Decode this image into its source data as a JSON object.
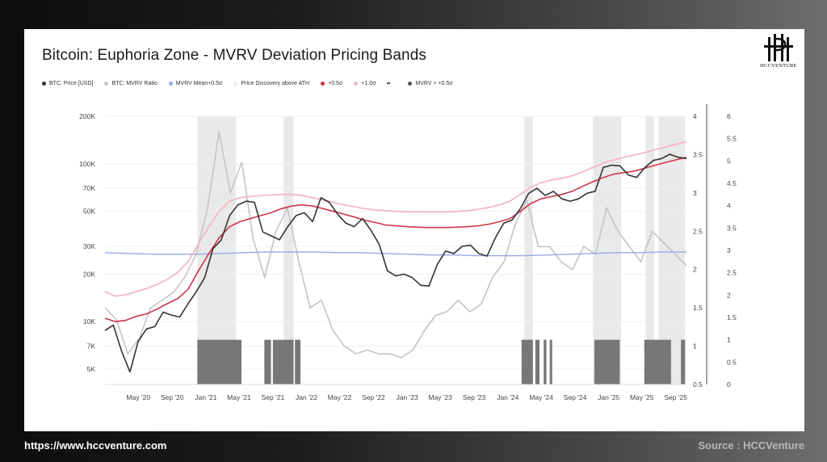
{
  "footer": {
    "url": "https://www.hccventure.com",
    "source": "Source : HCCVenture"
  },
  "logo": {
    "text": "HCCVENTURE"
  },
  "chart_data": {
    "type": "line",
    "title": "Bitcoin: Euphoria Zone - MVRV Deviation Pricing Bands",
    "legend": [
      {
        "label": "BTC: Price [USD]",
        "color": "#333333",
        "marker": "dot"
      },
      {
        "label": "BTC: MVRV Ratio",
        "color": "#c4c4c4",
        "marker": "dot"
      },
      {
        "label": "MVRV Mean+0.5σ",
        "color": "#9aa8e6",
        "marker": "dot"
      },
      {
        "label": "Price Discovery above ATH",
        "color": "#eeeeee",
        "marker": "dot"
      },
      {
        "label": "+0.5σ",
        "color": "#d0344b",
        "marker": "dot"
      },
      {
        "label": "+1.0σ",
        "color": "#f2b9c1",
        "marker": "dot"
      },
      {
        "label": "",
        "color": "#555555",
        "marker": "dash"
      },
      {
        "label": "MVRV > +0.5σ",
        "color": "#555555",
        "marker": "dot"
      }
    ],
    "x_ticks": [
      "May '20",
      "Sep '20",
      "Jan '21",
      "May '21",
      "Sep '21",
      "Jan '22",
      "May '22",
      "Sep '22",
      "Jan '23",
      "May '23",
      "Sep '23",
      "Jan '24",
      "May '24",
      "Sep '24",
      "Jan '25",
      "May '25",
      "Sep '25"
    ],
    "y_left": {
      "scale": "log",
      "ticks": [
        "200K",
        "100K",
        "70K",
        "50K",
        "30K",
        "20K",
        "10K",
        "7K",
        "5K"
      ],
      "values": [
        200000,
        100000,
        70000,
        50000,
        30000,
        20000,
        10000,
        7000,
        5000
      ],
      "range": [
        4000,
        200000
      ]
    },
    "y_mid": {
      "ticks": [
        "4",
        "3.5",
        "3",
        "2.5",
        "2",
        "1.5",
        "1",
        "0.5"
      ],
      "values": [
        4,
        3.5,
        3,
        2.5,
        2,
        1.5,
        1,
        0.5
      ],
      "range": [
        0.5,
        4.0
      ]
    },
    "y_right": {
      "ticks": [
        "6",
        "5.5",
        "5",
        "4.5",
        "4",
        "3.5",
        "3",
        "2.5",
        "2",
        "1.5",
        "1",
        "0.5",
        "0"
      ],
      "values": [
        6,
        5.5,
        5,
        4.5,
        4,
        3.5,
        3,
        2.5,
        2,
        1.5,
        1,
        0.5,
        0
      ],
      "range": [
        0,
        6
      ]
    },
    "series": [
      {
        "name": "BTC: Price [USD]",
        "color": "#333333",
        "values": [
          8800,
          9500,
          6500,
          4800,
          7500,
          9000,
          9300,
          11500,
          11000,
          10700,
          13000,
          15500,
          19000,
          29000,
          33000,
          47000,
          55000,
          58000,
          57000,
          37000,
          35000,
          33000,
          40000,
          47000,
          49000,
          43000,
          61000,
          57000,
          48000,
          42000,
          40000,
          45000,
          38000,
          31000,
          21000,
          19500,
          20000,
          19000,
          17000,
          16800,
          23000,
          28000,
          27000,
          30000,
          30500,
          27000,
          26000,
          34000,
          42000,
          44000,
          52000,
          65000,
          70000,
          63000,
          67000,
          60000,
          58000,
          60000,
          65000,
          67000,
          95000,
          98000,
          97000,
          85000,
          82000,
          95000,
          105000,
          108000,
          115000,
          110000,
          108000
        ]
      },
      {
        "name": "+0.5σ",
        "color": "#d0344b",
        "values": [
          10500,
          10000,
          10200,
          10800,
          11200,
          12000,
          13000,
          14000,
          16000,
          21000,
          27000,
          34000,
          40000,
          43000,
          45000,
          47000,
          49000,
          52000,
          54000,
          55000,
          54000,
          52000,
          50000,
          48000,
          46000,
          44000,
          42500,
          41000,
          40500,
          40000,
          39700,
          39500,
          39500,
          39500,
          39700,
          40000,
          40500,
          41500,
          43000,
          45000,
          50000,
          56000,
          60000,
          62000,
          64000,
          67000,
          72000,
          77000,
          82000,
          86000,
          88000,
          90000,
          94000,
          98000,
          102000,
          106000,
          110000
        ]
      },
      {
        "name": "+1.0σ",
        "color": "#f2b9c1",
        "values": [
          15500,
          14500,
          14800,
          15500,
          16200,
          17200,
          18500,
          20500,
          24000,
          31000,
          40000,
          50000,
          58000,
          61000,
          62000,
          63000,
          63500,
          64000,
          64000,
          63000,
          61000,
          59000,
          57000,
          55000,
          53500,
          52000,
          51000,
          50500,
          50000,
          49800,
          49700,
          49600,
          49600,
          49700,
          50000,
          50500,
          51500,
          53000,
          55000,
          58000,
          64000,
          71000,
          76000,
          79000,
          81000,
          84000,
          89000,
          95000,
          101000,
          106000,
          110000,
          114000,
          118000,
          123000,
          128000,
          133000,
          138000
        ]
      },
      {
        "name": "MVRV Mean+0.5σ",
        "color": "#9aa8e6",
        "values": [
          2.22,
          2.21,
          2.2,
          2.2,
          2.2,
          2.21,
          2.22,
          2.23,
          2.23,
          2.23,
          2.22,
          2.22,
          2.21,
          2.2,
          2.19,
          2.19,
          2.18,
          2.18,
          2.18,
          2.19,
          2.2,
          2.21,
          2.22,
          2.22,
          2.23,
          2.23
        ]
      },
      {
        "name": "BTC: MVRV Ratio",
        "color": "#c4c4c4",
        "values": [
          1.5,
          1.35,
          0.9,
          1.1,
          1.5,
          1.6,
          1.7,
          1.9,
          2.2,
          2.8,
          3.8,
          3.0,
          3.4,
          2.4,
          1.9,
          2.5,
          2.8,
          2.1,
          1.5,
          1.6,
          1.2,
          1.0,
          0.9,
          0.95,
          0.9,
          0.9,
          0.85,
          0.95,
          1.2,
          1.4,
          1.45,
          1.6,
          1.45,
          1.55,
          1.9,
          2.1,
          2.6,
          2.9,
          2.3,
          2.3,
          2.1,
          2.0,
          2.3,
          2.2,
          2.8,
          2.5,
          2.3,
          2.1,
          2.5,
          2.35,
          2.2,
          2.05
        ]
      },
      {
        "name": "MVRV > +0.5σ",
        "color": "#777777",
        "periods": [
          [
            "2020-12-01",
            "2021-05-10"
          ],
          [
            "2021-08-01",
            "2021-08-25"
          ],
          [
            "2021-09-01",
            "2021-11-15"
          ],
          [
            "2021-11-20",
            "2021-12-10"
          ],
          [
            "2024-02-20",
            "2024-04-01"
          ],
          [
            "2024-04-10",
            "2024-04-25"
          ],
          [
            "2024-05-10",
            "2024-05-20"
          ],
          [
            "2024-06-01",
            "2024-06-10"
          ],
          [
            "2024-11-10",
            "2025-02-10"
          ],
          [
            "2025-05-10",
            "2025-08-15"
          ],
          [
            "2025-09-20",
            "2025-10-05"
          ]
        ]
      }
    ],
    "ath_discovery": [
      [
        "2020-12-01",
        "2021-04-20"
      ],
      [
        "2021-10-10",
        "2021-11-15"
      ],
      [
        "2024-03-01",
        "2024-04-01"
      ],
      [
        "2024-11-05",
        "2025-02-15"
      ],
      [
        "2025-05-15",
        "2025-06-15"
      ],
      [
        "2025-07-01",
        "2025-10-05"
      ]
    ],
    "grid": true
  }
}
